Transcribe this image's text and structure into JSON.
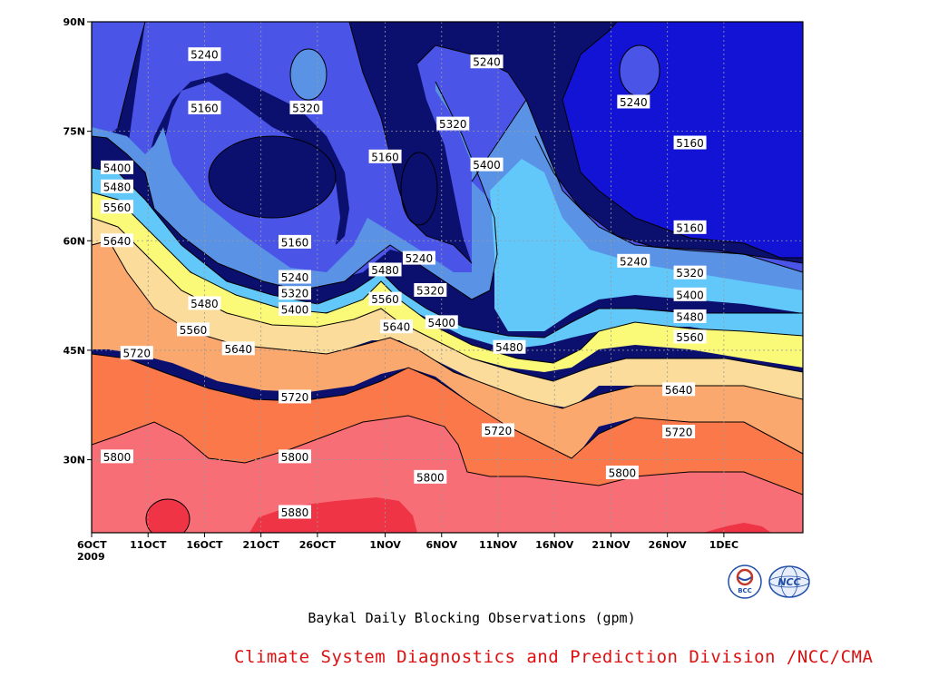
{
  "chart_data": {
    "type": "contour",
    "caption": "Baykal Daily Blocking Observations (gpm)",
    "credit": "Climate System Diagnostics and Prediction Division /NCC/CMA",
    "x_axis": {
      "type": "time",
      "range": [
        "2009-10-06",
        "2009-12-08"
      ],
      "ticks": [
        {
          "date": "2009-10-06",
          "label": "6OCT",
          "sublabel": "2009"
        },
        {
          "date": "2009-10-11",
          "label": "11OCT"
        },
        {
          "date": "2009-10-16",
          "label": "16OCT"
        },
        {
          "date": "2009-10-21",
          "label": "21OCT"
        },
        {
          "date": "2009-10-26",
          "label": "26OCT"
        },
        {
          "date": "2009-11-01",
          "label": "1NOV"
        },
        {
          "date": "2009-11-06",
          "label": "6NOV"
        },
        {
          "date": "2009-11-11",
          "label": "11NOV"
        },
        {
          "date": "2009-11-16",
          "label": "16NOV"
        },
        {
          "date": "2009-11-21",
          "label": "21NOV"
        },
        {
          "date": "2009-11-26",
          "label": "26NOV"
        },
        {
          "date": "2009-12-01",
          "label": "1DEC"
        }
      ]
    },
    "y_axis": {
      "unit": "degrees north",
      "range": [
        20,
        90
      ],
      "ticks": [
        {
          "value": 30,
          "label": "30N"
        },
        {
          "value": 45,
          "label": "45N"
        },
        {
          "value": 60,
          "label": "60N"
        },
        {
          "value": 75,
          "label": "75N"
        },
        {
          "value": 90,
          "label": "90N"
        }
      ]
    },
    "grid": true,
    "contour_levels": [
      5160,
      5240,
      5320,
      5400,
      5480,
      5560,
      5640,
      5720,
      5800,
      5880
    ],
    "fill_colors": [
      "#0b0f6e",
      "#1313d6",
      "#4a55e8",
      "#5a92e6",
      "#62c8fa",
      "#fafa78",
      "#fcdc9a",
      "#fba86e",
      "#fb784a",
      "#f76e76",
      "#ef3446"
    ],
    "contour_labels": [
      {
        "text": "5240",
        "date": "2009-10-16",
        "lat": 85.5
      },
      {
        "text": "5160",
        "date": "2009-10-16",
        "lat": 78.2
      },
      {
        "text": "5320",
        "date": "2009-10-25",
        "lat": 78.2
      },
      {
        "text": "5400",
        "date": "2009-10-06",
        "lat": 70.0
      },
      {
        "text": "5480",
        "date": "2009-10-06",
        "lat": 67.4
      },
      {
        "text": "5560",
        "date": "2009-10-06",
        "lat": 64.6
      },
      {
        "text": "5640",
        "date": "2009-10-06",
        "lat": 60.0
      },
      {
        "text": "5160",
        "date": "2009-10-24",
        "lat": 59.8
      },
      {
        "text": "5240",
        "date": "2009-10-24",
        "lat": 55.0
      },
      {
        "text": "5320",
        "date": "2009-10-24",
        "lat": 52.8
      },
      {
        "text": "5400",
        "date": "2009-10-24",
        "lat": 50.6
      },
      {
        "text": "5480",
        "date": "2009-10-16",
        "lat": 51.4
      },
      {
        "text": "5560",
        "date": "2009-10-15",
        "lat": 47.8
      },
      {
        "text": "5640",
        "date": "2009-10-19",
        "lat": 45.2
      },
      {
        "text": "5720",
        "date": "2009-10-10",
        "lat": 44.6
      },
      {
        "text": "5720",
        "date": "2009-10-24",
        "lat": 38.6
      },
      {
        "text": "5800",
        "date": "2009-10-08",
        "lat": 30.4
      },
      {
        "text": "5800",
        "date": "2009-10-24",
        "lat": 30.4
      },
      {
        "text": "5880",
        "date": "2009-10-24",
        "lat": 22.8
      },
      {
        "text": "5160",
        "date": "2009-11-01",
        "lat": 71.5
      },
      {
        "text": "5480",
        "date": "2009-11-01",
        "lat": 56.0
      },
      {
        "text": "5560",
        "date": "2009-11-01",
        "lat": 52.0
      },
      {
        "text": "5640",
        "date": "2009-11-02",
        "lat": 48.2
      },
      {
        "text": "5240",
        "date": "2009-11-04",
        "lat": 57.6
      },
      {
        "text": "5320",
        "date": "2009-11-05",
        "lat": 53.2
      },
      {
        "text": "5400",
        "date": "2009-11-06",
        "lat": 48.8
      },
      {
        "text": "5320",
        "date": "2009-11-07",
        "lat": 76.0
      },
      {
        "text": "5240",
        "date": "2009-11-10",
        "lat": 84.5
      },
      {
        "text": "5400",
        "date": "2009-11-10",
        "lat": 70.4
      },
      {
        "text": "5480",
        "date": "2009-11-12",
        "lat": 45.4
      },
      {
        "text": "5720",
        "date": "2009-11-11",
        "lat": 34.0
      },
      {
        "text": "5800",
        "date": "2009-11-05",
        "lat": 27.6
      },
      {
        "text": "5240",
        "date": "2009-11-23",
        "lat": 79.0
      },
      {
        "text": "5160",
        "date": "2009-11-28",
        "lat": 73.4
      },
      {
        "text": "5160",
        "date": "2009-11-28",
        "lat": 61.8
      },
      {
        "text": "5240",
        "date": "2009-11-23",
        "lat": 57.2
      },
      {
        "text": "5320",
        "date": "2009-11-28",
        "lat": 55.6
      },
      {
        "text": "5400",
        "date": "2009-11-28",
        "lat": 52.6
      },
      {
        "text": "5480",
        "date": "2009-11-28",
        "lat": 49.6
      },
      {
        "text": "5560",
        "date": "2009-11-28",
        "lat": 46.8
      },
      {
        "text": "5640",
        "date": "2009-11-27",
        "lat": 39.6
      },
      {
        "text": "5720",
        "date": "2009-11-27",
        "lat": 33.8
      },
      {
        "text": "5800",
        "date": "2009-11-22",
        "lat": 28.2
      }
    ]
  },
  "logos": [
    {
      "name": "bcc",
      "text": "BCC",
      "colors": [
        "#c0392b",
        "#1f4fa8"
      ]
    },
    {
      "name": "ncc",
      "text": "NCC",
      "colors": [
        "#1f4fa8"
      ]
    }
  ]
}
